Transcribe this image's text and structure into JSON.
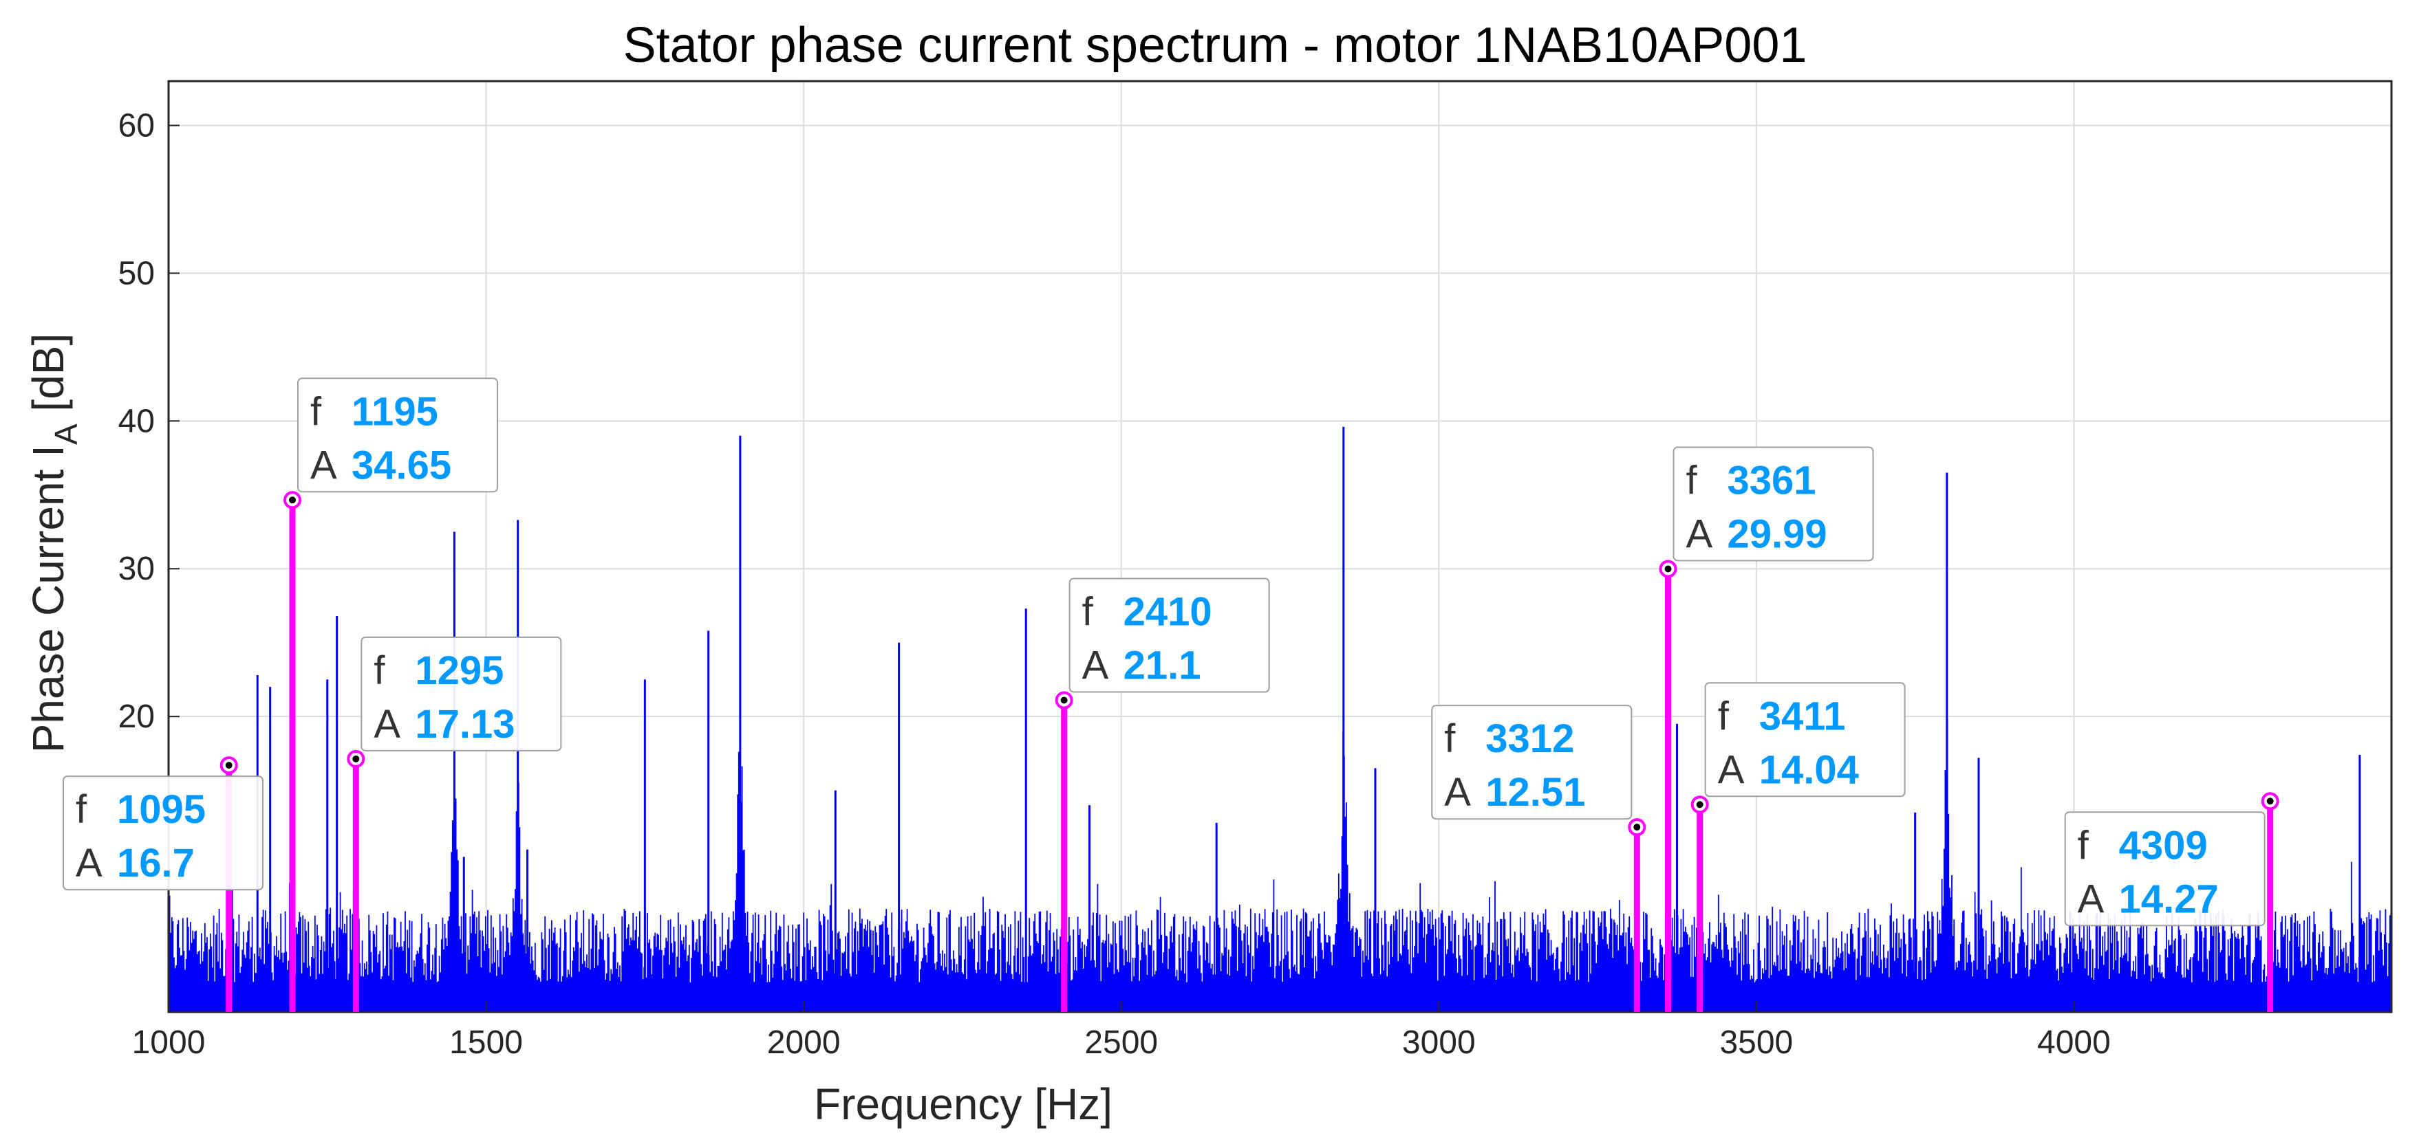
{
  "chart_data": {
    "type": "line",
    "title": "Stator phase current spectrum - motor 1NAB10AP001",
    "xlabel": "Frequency [Hz]",
    "ylabel_main": "Phase Current I",
    "ylabel_sub": "A",
    "ylabel_unit": " [dB]",
    "xlim": [
      1000,
      4500
    ],
    "ylim": [
      0,
      63
    ],
    "xticks": [
      1000,
      1500,
      2000,
      2500,
      3000,
      3500,
      4000
    ],
    "yticks": [
      20,
      30,
      40,
      50,
      60
    ],
    "grid": true,
    "spectrum_color": "#0000ff",
    "marker_color": "#ff00ff",
    "noise_floor_db": [
      2,
      7
    ],
    "spectrum_peaks": [
      {
        "f": 1000,
        "a": 8
      },
      {
        "f": 1140,
        "a": 22.8
      },
      {
        "f": 1160,
        "a": 22
      },
      {
        "f": 1250,
        "a": 22.5
      },
      {
        "f": 1265,
        "a": 26.8
      },
      {
        "f": 1450,
        "a": 32.5
      },
      {
        "f": 1465,
        "a": 10.5
      },
      {
        "f": 1550,
        "a": 33.3
      },
      {
        "f": 1565,
        "a": 11
      },
      {
        "f": 1750,
        "a": 22.5
      },
      {
        "f": 1850,
        "a": 25.8
      },
      {
        "f": 1900,
        "a": 39
      },
      {
        "f": 2050,
        "a": 15
      },
      {
        "f": 2150,
        "a": 25
      },
      {
        "f": 2350,
        "a": 27.3
      },
      {
        "f": 2450,
        "a": 14
      },
      {
        "f": 2650,
        "a": 12.8
      },
      {
        "f": 2850,
        "a": 39.6
      },
      {
        "f": 2900,
        "a": 16.5
      },
      {
        "f": 3375,
        "a": 19.5
      },
      {
        "f": 3750,
        "a": 13.5
      },
      {
        "f": 3800,
        "a": 36.5
      },
      {
        "f": 3850,
        "a": 17.2
      },
      {
        "f": 4450,
        "a": 17.4
      }
    ],
    "markers": [
      {
        "f": 1095,
        "A": 16.7,
        "f_text": "1095",
        "A_text": "16.7",
        "box_pos": "lower-left"
      },
      {
        "f": 1195,
        "A": 34.65,
        "f_text": "1195",
        "A_text": "34.65",
        "box_pos": "upper-right"
      },
      {
        "f": 1295,
        "A": 17.13,
        "f_text": "1295",
        "A_text": "17.13",
        "box_pos": "upper-right"
      },
      {
        "f": 2410,
        "A": 21.1,
        "f_text": "2410",
        "A_text": "21.1",
        "box_pos": "upper-right"
      },
      {
        "f": 3312,
        "A": 12.51,
        "f_text": "3312",
        "A_text": "12.51",
        "box_pos": "upper-left"
      },
      {
        "f": 3361,
        "A": 29.99,
        "f_text": "3361",
        "A_text": "29.99",
        "box_pos": "upper-right"
      },
      {
        "f": 3411,
        "A": 14.04,
        "f_text": "3411",
        "A_text": "14.04",
        "box_pos": "upper-right"
      },
      {
        "f": 4309,
        "A": 14.27,
        "f_text": "4309",
        "A_text": "14.27",
        "box_pos": "lower-left"
      }
    ],
    "annotation_key_f": "f",
    "annotation_key_A": "A"
  }
}
